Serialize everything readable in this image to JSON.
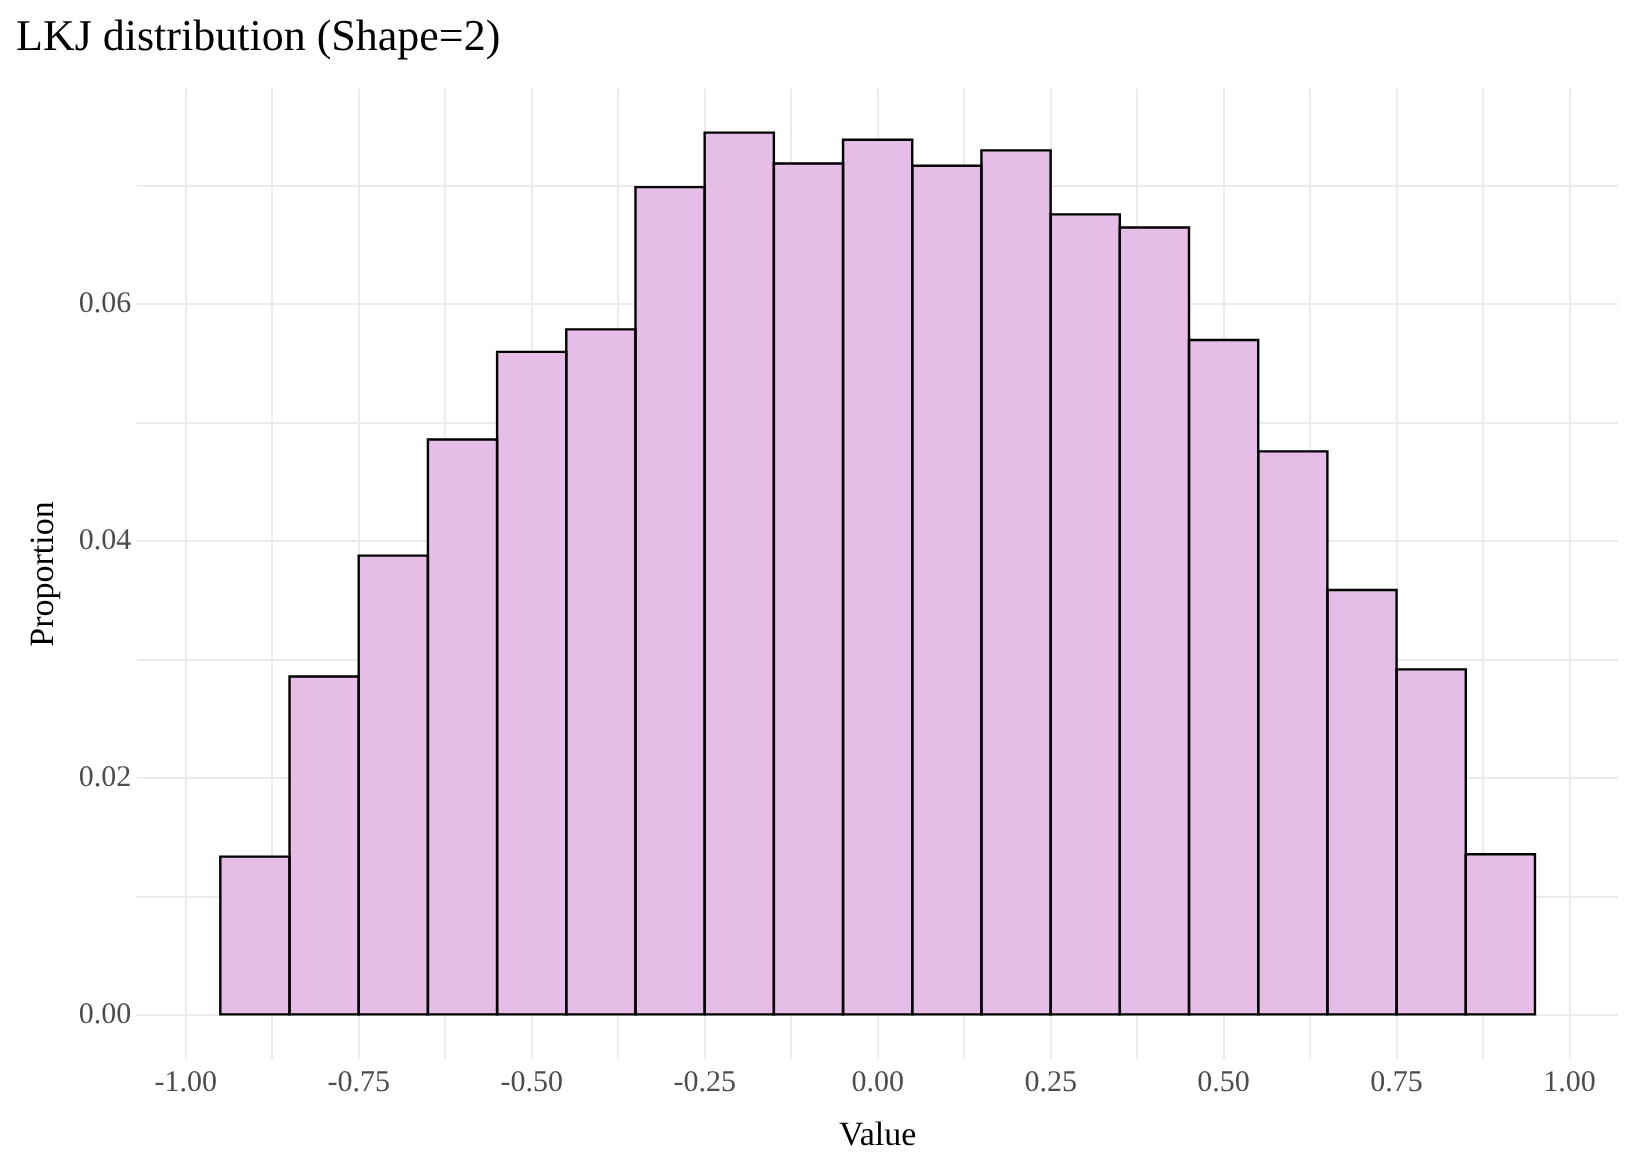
{
  "chart_data": {
    "type": "histogram",
    "title": "LKJ distribution (Shape=2)",
    "xlabel": "Value",
    "ylabel": "Proportion",
    "bins": [
      -0.95,
      -0.85,
      -0.75,
      -0.65,
      -0.55,
      -0.45,
      -0.35,
      -0.25,
      -0.15,
      -0.05,
      0.05,
      0.15,
      0.25,
      0.35,
      0.45,
      0.55,
      0.65,
      0.75,
      0.85,
      0.95
    ],
    "values": [
      0.0134,
      0.0286,
      0.0388,
      0.0486,
      0.056,
      0.0579,
      0.0699,
      0.0745,
      0.0719,
      0.0739,
      0.0717,
      0.073,
      0.0676,
      0.0665,
      0.057,
      0.0476,
      0.0359,
      0.0292,
      0.0136
    ],
    "color": "#e6bde6",
    "xlim": [
      -1.07,
      1.07
    ],
    "xticks": [
      {
        "value": -1,
        "label": "-1.00"
      },
      {
        "value": -0.875,
        "label": null
      },
      {
        "value": -0.75,
        "label": "-0.75"
      },
      {
        "value": -0.625,
        "label": null
      },
      {
        "value": -0.5,
        "label": "-0.50"
      },
      {
        "value": -0.375,
        "label": null
      },
      {
        "value": -0.25,
        "label": "-0.25"
      },
      {
        "value": -0.125,
        "label": null
      },
      {
        "value": 0,
        "label": "0.00"
      },
      {
        "value": 0.125,
        "label": null
      },
      {
        "value": 0.25,
        "label": "0.25"
      },
      {
        "value": 0.375,
        "label": null
      },
      {
        "value": 0.5,
        "label": "0.50"
      },
      {
        "value": 0.625,
        "label": null
      },
      {
        "value": 0.75,
        "label": "0.75"
      },
      {
        "value": 0.875,
        "label": null
      },
      {
        "value": 1,
        "label": "1.00"
      }
    ],
    "ylim": [
      -0.0037,
      0.0782
    ],
    "yticks": [
      {
        "value": 0,
        "label": "0.00"
      },
      {
        "value": 0.01,
        "label": null
      },
      {
        "value": 0.02,
        "label": "0.02"
      },
      {
        "value": 0.03,
        "label": null
      },
      {
        "value": 0.04,
        "label": "0.04"
      },
      {
        "value": 0.05,
        "label": null
      },
      {
        "value": 0.06,
        "label": "0.06"
      },
      {
        "value": 0.07,
        "label": null
      }
    ],
    "grid": true
  }
}
